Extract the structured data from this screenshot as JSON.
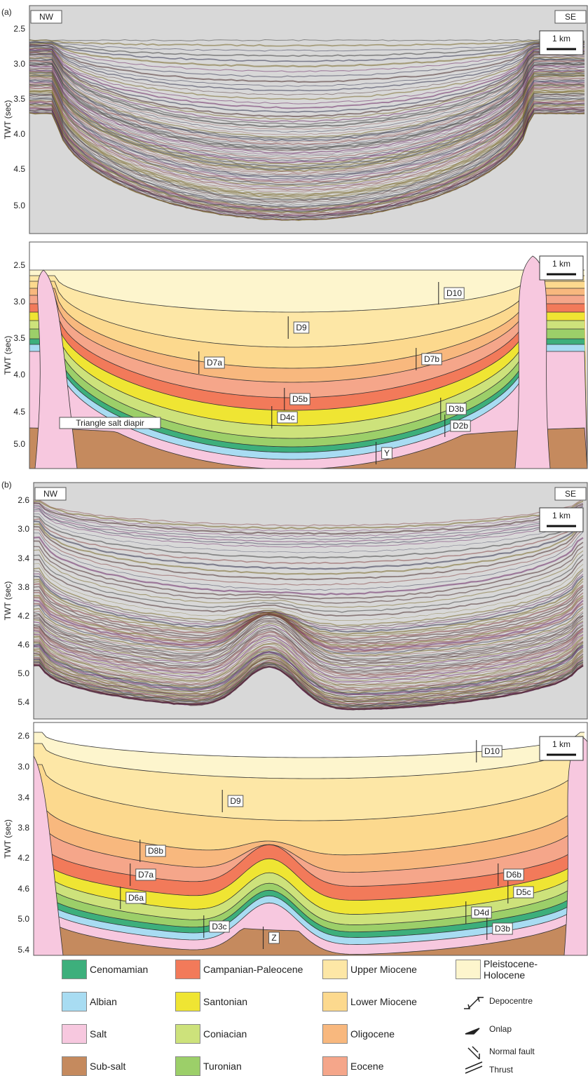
{
  "panels": [
    {
      "label": "(a)",
      "seismic": {
        "left": "NW",
        "right": "SE",
        "scale": "1 km",
        "axis_label": "TWT (sec)",
        "ticks": [
          "2.5",
          "3.0",
          "3.5",
          "4.0",
          "4.5",
          "5.0"
        ]
      },
      "interpretation": {
        "scale": "1 km",
        "axis_label": "TWT (sec)",
        "ticks": [
          "2.5",
          "3.0",
          "3.5",
          "4.0",
          "4.5",
          "5.0"
        ],
        "annotations": [
          "D10",
          "D9",
          "D7a",
          "D7b",
          "D5b",
          "D4c",
          "D3b",
          "D2b",
          "Y",
          "Triangle salt diapir"
        ]
      }
    },
    {
      "label": "(b)",
      "seismic": {
        "left": "NW",
        "right": "SE",
        "scale": "1 km",
        "axis_label": "TWT (sec)",
        "ticks": [
          "2.6",
          "3.0",
          "3.4",
          "3.8",
          "4.2",
          "4.6",
          "5.0",
          "5.4"
        ]
      },
      "interpretation": {
        "scale": "1 km",
        "axis_label": "TWT (sec)",
        "ticks": [
          "2.6",
          "3.0",
          "3.4",
          "3.8",
          "4.2",
          "4.6",
          "5.0",
          "5.4"
        ],
        "annotations": [
          "D10",
          "D9",
          "D8b",
          "D7a",
          "D6a",
          "D6b",
          "D5c",
          "D4d",
          "D3b",
          "D3c",
          "Z"
        ]
      }
    }
  ],
  "legend": {
    "units": [
      {
        "label": "Cenomamian",
        "color": "#3daf7c"
      },
      {
        "label": "Albian",
        "color": "#a8dcf2"
      },
      {
        "label": "Salt",
        "color": "#f7c8df"
      },
      {
        "label": "Sub-salt",
        "color": "#c58a5e"
      },
      {
        "label": "Campanian-Paleocene",
        "color": "#f27a5a"
      },
      {
        "label": "Santonian",
        "color": "#efe533"
      },
      {
        "label": "Coniacian",
        "color": "#cde27b"
      },
      {
        "label": "Turonian",
        "color": "#9ccf69"
      },
      {
        "label": "Upper Miocene",
        "color": "#fde7a6"
      },
      {
        "label": "Lower Miocene",
        "color": "#fcd98e"
      },
      {
        "label": "Oligocene",
        "color": "#f8b87e"
      },
      {
        "label": "Eocene",
        "color": "#f5a68a"
      },
      {
        "label": "Pleistocene-Holocene",
        "color": "#fdf5cd"
      }
    ],
    "symbols": [
      "Depocentre",
      "Onlap",
      "Normal fault",
      "Thrust"
    ]
  }
}
